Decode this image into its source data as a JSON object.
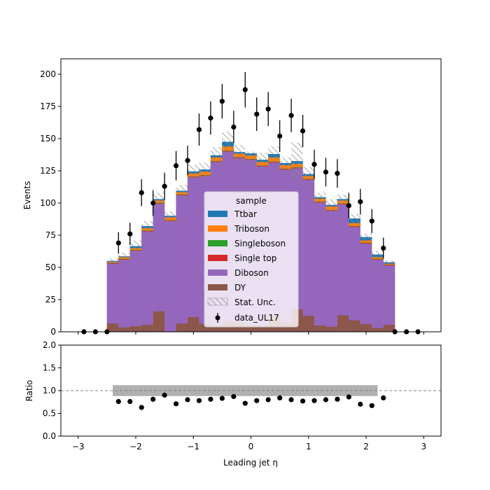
{
  "chart_data": [
    {
      "type": "bar",
      "stacked": true,
      "panel": "main",
      "xlabel": "",
      "ylabel": "Events",
      "xlim": [
        -3.3,
        3.3
      ],
      "ylim": [
        0,
        212
      ],
      "yticks": [
        0,
        25,
        50,
        75,
        100,
        125,
        150,
        175,
        200
      ],
      "xticks": [
        -3,
        -2,
        -1,
        0,
        1,
        2,
        3
      ],
      "legend": {
        "title": "sample",
        "placement": "center",
        "entries": [
          "Ttbar",
          "Triboson",
          "Singleboson",
          "Single top",
          "Diboson",
          "DY",
          "Stat. Unc.",
          "data_UL17"
        ]
      },
      "bin_edges": [
        -2.5,
        -2.3,
        -2.1,
        -1.9,
        -1.7,
        -1.5,
        -1.3,
        -1.1,
        -0.9,
        -0.7,
        -0.5,
        -0.3,
        -0.1,
        0.1,
        0.3,
        0.5,
        0.7,
        0.9,
        1.1,
        1.3,
        1.5,
        1.7,
        1.9,
        2.1,
        2.3,
        2.5
      ],
      "series": [
        {
          "name": "DY",
          "color": "#8c564b",
          "values": [
            6.5,
            3.5,
            4.5,
            5.5,
            16,
            0.5,
            6.5,
            11.5,
            6.5,
            4.5,
            8.5,
            7.5,
            5,
            5,
            13,
            7.5,
            17.5,
            12.5,
            5,
            4,
            13,
            9,
            6,
            3,
            5.5
          ]
        },
        {
          "name": "Diboson",
          "color": "#9467bd",
          "values": [
            46.5,
            52.5,
            58.5,
            72.5,
            83.5,
            85.5,
            99.5,
            108.5,
            114.5,
            127.5,
            131.5,
            127.5,
            128.5,
            123.5,
            118.5,
            118.5,
            109.5,
            105.5,
            95.5,
            90,
            86,
            72.5,
            62.5,
            53,
            46
          ]
        },
        {
          "name": "Single top",
          "color": "#d62728",
          "values": [
            0.5,
            0.5,
            0.5,
            0.5,
            0.5,
            0.5,
            0.5,
            0.5,
            0.5,
            0.5,
            0.5,
            0.5,
            0.5,
            0.5,
            0.5,
            0.5,
            0.5,
            0.5,
            0.5,
            0.5,
            0.5,
            0.5,
            0.5,
            0.5,
            0.5
          ]
        },
        {
          "name": "Singleboson",
          "color": "#2ca02c",
          "values": [
            0.3,
            0.3,
            0.3,
            0.3,
            0.3,
            0.3,
            0.3,
            0.3,
            0.3,
            0.3,
            0.3,
            0.3,
            0.3,
            0.3,
            0.3,
            0.3,
            0.3,
            0.3,
            0.3,
            0.3,
            0.3,
            0.3,
            0.3,
            0.3,
            0.3
          ]
        },
        {
          "name": "Triboson",
          "color": "#ff7f0e",
          "values": [
            0.7,
            1.2,
            1.2,
            1.7,
            1.7,
            2.2,
            1.7,
            2.2,
            2.7,
            2.7,
            3.2,
            2.7,
            2.7,
            2.7,
            3.2,
            2.7,
            2.7,
            2.2,
            2.2,
            2.7,
            2.2,
            2.2,
            1.7,
            1.2,
            0.7
          ]
        },
        {
          "name": "Ttbar",
          "color": "#1f77b4",
          "values": [
            0.5,
            0.5,
            1.5,
            1.5,
            1,
            1,
            1,
            1.5,
            1.5,
            1.5,
            3.5,
            1,
            1.5,
            1.5,
            2.5,
            1.5,
            2,
            1.5,
            1,
            1,
            1,
            3.5,
            2.5,
            2,
            1
          ]
        }
      ],
      "stat_unc_totals": [
        55,
        58.5,
        67,
        81,
        102,
        89.5,
        109,
        124,
        125.5,
        136.5,
        147.5,
        139,
        135,
        133,
        138,
        130.5,
        132,
        122,
        104,
        98,
        102.5,
        87.5,
        73.5,
        60,
        53.5
      ],
      "stat_unc_halfwidth": [
        2,
        3,
        4,
        5,
        6,
        4,
        5,
        6,
        6,
        7,
        8,
        6,
        5,
        6,
        6,
        5,
        15,
        6,
        4,
        5,
        4,
        4,
        3,
        3,
        2
      ],
      "data": {
        "name": "data_UL17",
        "x": [
          -2.9,
          -2.7,
          -2.5,
          -2.3,
          -2.1,
          -1.9,
          -1.7,
          -1.5,
          -1.3,
          -1.1,
          -0.9,
          -0.7,
          -0.5,
          -0.3,
          -0.1,
          0.1,
          0.3,
          0.5,
          0.7,
          0.9,
          1.1,
          1.3,
          1.5,
          1.7,
          1.9,
          2.1,
          2.3,
          2.5,
          2.7,
          2.9
        ],
        "y": [
          0,
          0,
          0,
          69,
          76,
          108,
          100,
          113,
          129,
          133,
          157,
          166,
          179,
          159,
          188,
          169,
          173,
          152,
          168,
          156,
          130,
          124,
          123,
          98,
          101,
          86,
          65,
          0,
          0,
          0
        ],
        "yerr": [
          0,
          0,
          0,
          8.3,
          8.7,
          10.4,
          10,
          10.6,
          11.4,
          11.5,
          12.5,
          12.9,
          13.4,
          12.6,
          13.7,
          13,
          13.2,
          12.3,
          13,
          12.5,
          11.4,
          11.1,
          11.1,
          9.9,
          10,
          9.3,
          8.1,
          0,
          0,
          0
        ]
      }
    },
    {
      "type": "scatter",
      "panel": "ratio",
      "xlabel": "Leading jet  η",
      "ylabel": "Ratio",
      "xlim": [
        -3.3,
        3.3
      ],
      "ylim": [
        0,
        2
      ],
      "yticks": [
        "0.0",
        "0.5",
        "1.0",
        "1.5",
        "2.0"
      ],
      "xticks": [
        "−3",
        "−2",
        "−1",
        "0",
        "1",
        "2",
        "3"
      ],
      "reference_line": 1.0,
      "x": [
        -2.3,
        -2.1,
        -1.9,
        -1.7,
        -1.5,
        -1.3,
        -1.1,
        -0.9,
        -0.7,
        -0.5,
        -0.3,
        -0.1,
        0.1,
        0.3,
        0.5,
        0.7,
        0.9,
        1.1,
        1.3,
        1.5,
        1.7,
        1.9,
        2.1,
        2.3
      ],
      "y": [
        0.76,
        0.76,
        0.63,
        0.81,
        0.9,
        0.71,
        0.8,
        0.78,
        0.81,
        0.83,
        0.87,
        0.72,
        0.78,
        0.8,
        0.84,
        0.8,
        0.77,
        0.78,
        0.8,
        0.81,
        0.86,
        0.7,
        0.67,
        0.84
      ],
      "unc_band": {
        "x_range": [
          -2.4,
          2.2
        ],
        "lower": 0.88,
        "upper": 1.12,
        "color": "#b0b0b0"
      }
    }
  ]
}
